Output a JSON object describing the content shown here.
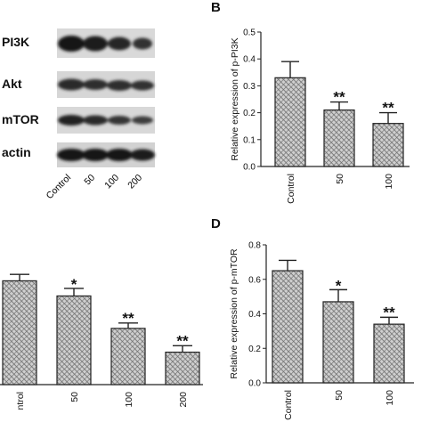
{
  "panel_a": {
    "blot_labels": [
      "PI3K",
      "Akt",
      "mTOR",
      "actin"
    ],
    "lane_labels": [
      "Control",
      "50",
      "100",
      "200"
    ]
  },
  "panel_b": {
    "letter": "B"
  },
  "panel_d": {
    "letter": "D"
  },
  "colors": {
    "bar_fill": "#cfcfcf",
    "bar_hatch": "#6a6a6a",
    "axis": "#222222",
    "blot_dark": "#141414"
  },
  "chart_data": [
    {
      "type": "bar",
      "categories": [
        "Control",
        "50",
        "100"
      ],
      "values": [
        0.33,
        0.21,
        0.16
      ],
      "errors": [
        0.06,
        0.03,
        0.04
      ],
      "annotations": [
        "",
        "**",
        "**"
      ],
      "ylabel": "Relative expression of p-PI3K",
      "ylim": [
        0,
        0.5
      ],
      "yticks": [
        0,
        0.1,
        0.2,
        0.3,
        0.4,
        0.5
      ],
      "ytick_labels": [
        "0.0",
        "0.1",
        "0.2",
        "0.3",
        "0.4",
        "0.5"
      ]
    },
    {
      "type": "bar",
      "categories": [
        "ntrol",
        "50",
        "100",
        "200"
      ],
      "values": [
        0.96,
        0.82,
        0.52,
        0.3
      ],
      "errors": [
        0.06,
        0.07,
        0.05,
        0.06
      ],
      "annotations": [
        "",
        "*",
        "**",
        "**"
      ],
      "ylim": [
        0,
        1.4
      ]
    },
    {
      "type": "bar",
      "categories": [
        "Control",
        "50",
        "100"
      ],
      "values": [
        0.65,
        0.47,
        0.34
      ],
      "errors": [
        0.06,
        0.07,
        0.04
      ],
      "annotations": [
        "",
        "*",
        "**"
      ],
      "ylabel": "Relative expression of p-mTOR",
      "ylim": [
        0,
        0.8
      ],
      "yticks": [
        0,
        0.2,
        0.4,
        0.6,
        0.8
      ],
      "ytick_labels": [
        "0.0",
        "0.2",
        "0.4",
        "0.6",
        "0.8"
      ]
    }
  ]
}
